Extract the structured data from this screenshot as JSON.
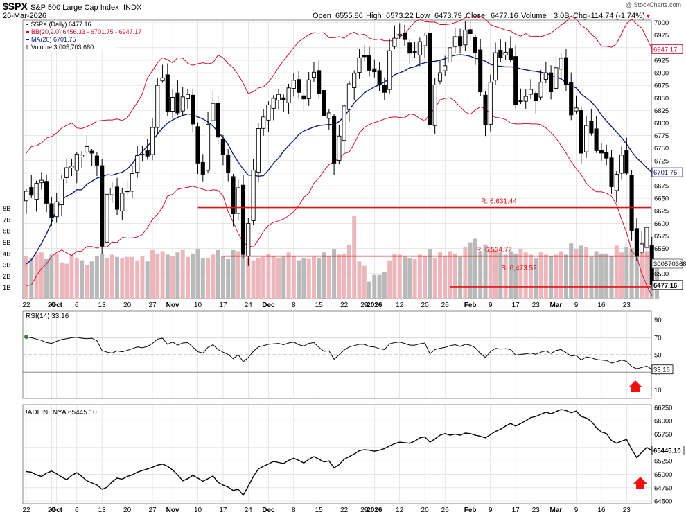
{
  "header": {
    "symbol": "$SPX",
    "name": "S&P 500 Large Cap Index",
    "exchange": "INDX",
    "date": "26-Mar-2026",
    "watermark": "@ StockCharts.com",
    "open_label": "Open",
    "open": "6555.86",
    "high_label": "High",
    "high": "6573.22",
    "low_label": "Low",
    "low": "6473.79",
    "close_label": "Close",
    "close": "6477.16",
    "volume_label": "Volume",
    "volume": "3.0B",
    "chg_label": "Chg",
    "chg": "-114.74 (-1.74%)",
    "chg_arrow": "▼"
  },
  "legend": {
    "price": "$SPX (Daily) 6477.16",
    "bb": "BB(20,2.0) 6456.33 - 6701.75 - 6947.17",
    "ma": "MA(20) 6701.75",
    "volume": "Volume 3,005,703,680"
  },
  "colors": {
    "bb": "#cc1133",
    "ma": "#101a78",
    "vol_up": "#ebb7bd",
    "vol_down": "#b9b9b9",
    "sr": "#dd1111",
    "arrow": "#ee1111",
    "grid": "#d8d8d8"
  },
  "chart_data": [
    {
      "type": "candlestick",
      "title": "$SPX S&P 500 Large Cap Index",
      "ylim": [
        6450,
        7005
      ],
      "y_ticks": [
        6500,
        6525,
        6550,
        6575,
        6600,
        6625,
        6650,
        6675,
        6700,
        6725,
        6750,
        6775,
        6800,
        6825,
        6850,
        6875,
        6900,
        6925,
        6950,
        6975,
        7000
      ],
      "x_tick_labels": [
        {
          "i": 0,
          "label": "22"
        },
        {
          "i": 5,
          "label": "29"
        },
        {
          "i": 6,
          "label": "Oct"
        },
        {
          "i": 10,
          "label": "6"
        },
        {
          "i": 15,
          "label": "13"
        },
        {
          "i": 20,
          "label": "20"
        },
        {
          "i": 25,
          "label": "27"
        },
        {
          "i": 29,
          "label": "Nov"
        },
        {
          "i": 34,
          "label": "10"
        },
        {
          "i": 39,
          "label": "17"
        },
        {
          "i": 44,
          "label": "24"
        },
        {
          "i": 48,
          "label": "Dec"
        },
        {
          "i": 53,
          "label": "8"
        },
        {
          "i": 58,
          "label": "15"
        },
        {
          "i": 63,
          "label": "22"
        },
        {
          "i": 67,
          "label": "29"
        },
        {
          "i": 69,
          "label": "2026"
        },
        {
          "i": 74,
          "label": "12"
        },
        {
          "i": 79,
          "label": "20"
        },
        {
          "i": 83,
          "label": "26"
        },
        {
          "i": 88,
          "label": "Feb"
        },
        {
          "i": 92,
          "label": "9"
        },
        {
          "i": 97,
          "label": "17"
        },
        {
          "i": 101,
          "label": "23"
        },
        {
          "i": 105,
          "label": "Mar"
        },
        {
          "i": 109,
          "label": "9"
        },
        {
          "i": 114,
          "label": "16"
        },
        {
          "i": 119,
          "label": "23"
        }
      ],
      "closes": [
        6664,
        6656,
        6680,
        6686,
        6640,
        6611,
        6643,
        6688,
        6711,
        6714,
        6738,
        6736,
        6753,
        6740,
        6716,
        6555,
        6658,
        6670,
        6628,
        6660,
        6663,
        6699,
        6735,
        6738,
        6734,
        6791,
        6875,
        6890,
        6822,
        6851,
        6820,
        6852,
        6857,
        6798,
        6720,
        6697,
        6797,
        6839,
        6772,
        6737,
        6701,
        6619,
        6671,
        6538,
        6600,
        6706,
        6789,
        6812,
        6836,
        6849,
        6857,
        6846,
        6870,
        6885,
        6861,
        6848,
        6886,
        6901,
        6859,
        6815,
        6820,
        6720,
        6774,
        6834,
        6878,
        6899,
        6930,
        6932,
        6905,
        6902,
        6876,
        6861,
        6944,
        6969,
        6977,
        6966,
        6939,
        6941,
        6962,
        6975,
        6796,
        6876,
        6900,
        6914,
        6950,
        6972,
        6953,
        6985,
        6978,
        6940,
        6862,
        6797,
        6881,
        6940,
        6931,
        6941,
        6926,
        6836,
        6843,
        6853,
        6867,
        6844,
        6881,
        6900,
        6862,
        6910,
        6929,
        6877,
        6816,
        6830,
        6740,
        6795,
        6780,
        6745,
        6740,
        6730,
        6673,
        6698,
        6736,
        6700,
        6585,
        6534,
        6559,
        6592,
        6477
      ],
      "bb_upper": [
        6740,
        6753,
        6755,
        6760,
        6770,
        6773,
        6780,
        6790,
        6795,
        6800,
        6790,
        6789,
        6793,
        6797,
        6804,
        6805,
        6806,
        6806,
        6808,
        6805,
        6810,
        6826,
        6841,
        6858,
        6890,
        6904,
        6920,
        6930,
        6926,
        6920,
        6930,
        6929,
        6919,
        6915,
        6918,
        6920,
        6918,
        6920,
        6935,
        6930,
        6918,
        6910,
        6896,
        6879,
        6859,
        6862,
        6870,
        6872,
        6881,
        6895,
        6911,
        6925,
        6937,
        6950,
        6962,
        6969,
        6976,
        6980,
        6979,
        6980,
        6970,
        6970,
        6972,
        6969,
        6977,
        6981,
        6975,
        6977,
        6969,
        6966,
        6967,
        6964,
        6964,
        6964,
        6972,
        6977,
        6990,
        7001,
        7007,
        7002,
        7001,
        7001,
        6996,
        6996,
        6997,
        7000,
        7004,
        7010,
        7011,
        7013,
        7012,
        7007,
        6996,
        6992,
        6989,
        6985,
        6983,
        6977,
        6973,
        6978,
        6972,
        6973,
        6972,
        6975,
        6979,
        6987,
        6995,
        7002,
        7013,
        7007,
        6994,
        6988,
        6977,
        6968,
        6953,
        6953,
        6951,
        6958,
        6978,
        6998,
        7007,
        6997,
        6989,
        6969,
        6948
      ],
      "ma20": [
        6519,
        6527,
        6543,
        6560,
        6579,
        6602,
        6628,
        6648,
        6654,
        6659,
        6667,
        6667,
        6678,
        6684,
        6690,
        6693,
        6697,
        6696,
        6699,
        6702,
        6708,
        6719,
        6732,
        6743,
        6754,
        6764,
        6778,
        6790,
        6800,
        6806,
        6811,
        6815,
        6818,
        6817,
        6812,
        6808,
        6802,
        6794,
        6782,
        6771,
        6757,
        6738,
        6722,
        6708,
        6696,
        6696,
        6694,
        6695,
        6706,
        6720,
        6730,
        6744,
        6755,
        6765,
        6777,
        6784,
        6788,
        6792,
        6795,
        6796,
        6797,
        6797,
        6803,
        6813,
        6826,
        6840,
        6850,
        6860,
        6866,
        6872,
        6876,
        6882,
        6888,
        6896,
        6900,
        6904,
        6910,
        6912,
        6917,
        6920,
        6922,
        6923,
        6925,
        6928,
        6932,
        6935,
        6936,
        6935,
        6933,
        6929,
        6927,
        6923,
        6917,
        6914,
        6913,
        6912,
        6912,
        6911,
        6908,
        6906,
        6904,
        6903,
        6901,
        6899,
        6895,
        6891,
        6888,
        6880,
        6874,
        6870,
        6858,
        6850,
        6842,
        6831,
        6816,
        6804,
        6793,
        6782,
        6771,
        6758,
        6743,
        6730,
        6721,
        6711,
        6701.75
      ],
      "bb_lower": [
        6476,
        6477,
        6495,
        6510,
        6519,
        6534,
        6542,
        6547,
        6541,
        6536,
        6544,
        6545,
        6554,
        6554,
        6551,
        6554,
        6553,
        6563,
        6562,
        6572,
        6571,
        6571,
        6573,
        6578,
        6591,
        6608,
        6618,
        6632,
        6654,
        6658,
        6668,
        6670,
        6672,
        6674,
        6671,
        6668,
        6665,
        6667,
        6666,
        6655,
        6623,
        6603,
        6580,
        6562,
        6555,
        6553,
        6567,
        6584,
        6596,
        6602,
        6605,
        6609,
        6615,
        6623,
        6635,
        6652,
        6660,
        6680,
        6690,
        6705,
        6717,
        6723,
        6730,
        6739,
        6742,
        6759,
        6780,
        6791,
        6797,
        6801,
        6804,
        6808,
        6811,
        6812,
        6811,
        6810,
        6818,
        6816,
        6809,
        6804,
        6818,
        6830,
        6846,
        6849,
        6850,
        6843,
        6832,
        6822,
        6817,
        6826,
        6832,
        6828,
        6818,
        6811,
        6810,
        6807,
        6800,
        6798,
        6798,
        6799,
        6798,
        6798,
        6797,
        6790,
        6781,
        6770,
        6755,
        6740,
        6723,
        6709,
        6697,
        6680,
        6670,
        6663,
        6663,
        6660,
        6654,
        6637,
        6608,
        6582,
        6545,
        6534,
        6500,
        6476,
        6456
      ]
    },
    {
      "type": "volume",
      "ylim": [
        0,
        9
      ],
      "y_ticks": [
        "1B",
        "2B",
        "3B",
        "4B",
        "5B",
        "6B",
        "7B",
        "8B"
      ],
      "last_value_label": "3005703680",
      "note": "Volume values in billions",
      "values": [
        3.8,
        3.6,
        3.9,
        4.1,
        3.5,
        3.9,
        4.0,
        3.2,
        3.1,
        3.9,
        3.6,
        3.4,
        3.0,
        3.3,
        3.8,
        4.0,
        3.6,
        3.9,
        3.7,
        3.6,
        3.7,
        3.7,
        3.4,
        3.8,
        3.3,
        4.3,
        4.0,
        4.2,
        3.9,
        3.8,
        4.1,
        4.3,
        3.7,
        4.0,
        4.4,
        3.6,
        3.6,
        3.9,
        4.3,
        3.8,
        3.5,
        4.3,
        4.2,
        4.8,
        3.6,
        3.4,
        3.6,
        3.7,
        4.0,
        3.8,
        3.6,
        3.7,
        4.1,
        3.8,
        3.4,
        3.6,
        3.5,
        3.7,
        3.6,
        4.1,
        3.8,
        4.4,
        3.9,
        4.0,
        4.8,
        7.3,
        3.3,
        2.9,
        1.5,
        2.1,
        2.1,
        2.4,
        3.4,
        4.0,
        3.9,
        3.7,
        3.6,
        3.5,
        3.9,
        3.8,
        4.4,
        3.6,
        4.1,
        3.8,
        4.2,
        4.0,
        3.7,
        4.6,
        5.0,
        5.3,
        4.2,
        4.8,
        4.6,
        4.3,
        4.1,
        3.9,
        4.2,
        4.0,
        4.4,
        4.1,
        3.9,
        3.6,
        4.1,
        3.9,
        3.8,
        3.9,
        4.2,
        3.9,
        4.9,
        4.4,
        4.7,
        4.6,
        3.7,
        4.2,
        4.0,
        4.0,
        3.8,
        4.7,
        4.1,
        4.6,
        4.5,
        4.2,
        5.0,
        4.2,
        4.5,
        3.0
      ]
    },
    {
      "type": "line",
      "title": "RSI(14)",
      "legend": "RSI(14) 33.16",
      "last_value_label": "33.16",
      "ylim": [
        0,
        100
      ],
      "y_ticks": [
        10,
        30,
        50,
        70,
        90
      ],
      "reference_lines": [
        30,
        50,
        70
      ],
      "values": [
        70.5,
        69.5,
        68.0,
        66.5,
        64.0,
        63.0,
        65.5,
        67.5,
        68.5,
        69.5,
        70.0,
        69.0,
        68.5,
        69.0,
        66.0,
        55.0,
        53.0,
        52.0,
        54.5,
        53.5,
        55.0,
        57.0,
        59.0,
        58.0,
        59.5,
        63.0,
        68.0,
        69.0,
        62.0,
        64.5,
        61.0,
        63.5,
        64.0,
        59.0,
        53.5,
        52.0,
        58.5,
        61.5,
        56.0,
        53.0,
        50.5,
        45.5,
        50.0,
        42.0,
        47.0,
        54.0,
        59.0,
        60.5,
        62.0,
        62.5,
        63.0,
        61.5,
        63.5,
        64.5,
        61.5,
        60.0,
        63.0,
        64.0,
        58.5,
        54.0,
        54.5,
        45.0,
        50.0,
        55.5,
        59.0,
        60.5,
        62.0,
        62.0,
        59.5,
        59.0,
        57.0,
        56.0,
        62.5,
        64.0,
        64.5,
        63.0,
        61.0,
        61.0,
        62.5,
        63.5,
        51.0,
        56.0,
        57.5,
        58.5,
        60.5,
        61.5,
        59.5,
        62.0,
        61.0,
        58.0,
        51.5,
        47.0,
        53.5,
        57.5,
        56.5,
        57.0,
        56.0,
        49.5,
        50.5,
        51.0,
        52.0,
        50.5,
        53.0,
        54.5,
        51.5,
        55.0,
        56.0,
        52.5,
        48.5,
        49.5,
        44.0,
        47.5,
        46.5,
        44.5,
        44.0,
        43.5,
        40.5,
        42.0,
        44.0,
        42.5,
        36.5,
        34.0,
        35.5,
        37.0,
        33.16
      ]
    },
    {
      "type": "line",
      "title": "!ADLINENYA",
      "legend": "!ADLINENYA 65445.10",
      "last_value_label": "65445.10",
      "ylim": [
        64450,
        66300
      ],
      "y_ticks": [
        64500,
        64750,
        65000,
        65250,
        65500,
        65750,
        66000,
        66250
      ],
      "values": [
        65050,
        65040,
        64990,
        64960,
        65020,
        65060,
        65010,
        64950,
        64900,
        64980,
        65030,
        64960,
        64880,
        64840,
        64800,
        64720,
        64760,
        64860,
        64930,
        64910,
        64960,
        64990,
        65040,
        65070,
        65100,
        65130,
        65170,
        65190,
        65150,
        65080,
        64990,
        64880,
        64920,
        64980,
        64930,
        64870,
        64920,
        64970,
        64850,
        64800,
        64760,
        64700,
        64720,
        64610,
        64780,
        64960,
        65100,
        65150,
        65190,
        65240,
        65220,
        65200,
        65260,
        65300,
        65260,
        65210,
        65280,
        65330,
        65280,
        65230,
        65250,
        65120,
        65180,
        65280,
        65330,
        65380,
        65440,
        65460,
        65450,
        65430,
        65450,
        65480,
        65530,
        65570,
        65600,
        65590,
        65580,
        65620,
        65680,
        65700,
        65600,
        65660,
        65730,
        65760,
        65730,
        65750,
        65730,
        65770,
        65760,
        65730,
        65710,
        65680,
        65740,
        65800,
        65840,
        65900,
        65950,
        65900,
        65950,
        66000,
        66060,
        66080,
        66120,
        66160,
        66130,
        66170,
        66210,
        66190,
        66150,
        66180,
        66080,
        66050,
        65990,
        65870,
        65790,
        65760,
        65630,
        65580,
        65620,
        65650,
        65470,
        65310,
        65410,
        65500,
        65445.1
      ]
    }
  ],
  "support_resistance": [
    {
      "label": "R. 6,631.44",
      "value": 6631.44
    },
    {
      "label": "R. 6,534.72",
      "value": 6534.72
    },
    {
      "label": "S. 6,473.52",
      "value": 6473.52
    }
  ],
  "last_labels": {
    "bb_upper": "6947.17",
    "bb_mid": "6701.75",
    "close": "6477.16"
  }
}
